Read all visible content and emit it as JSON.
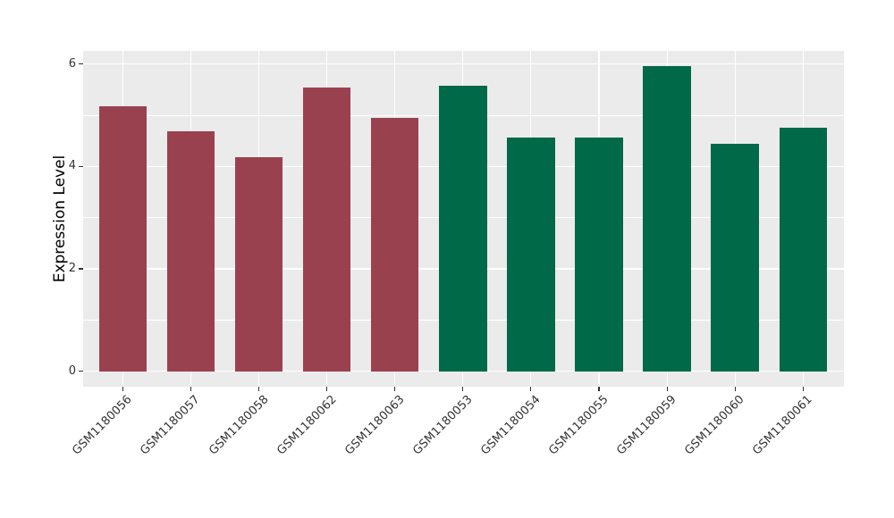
{
  "chart_data": {
    "type": "bar",
    "title": "",
    "xlabel": "",
    "ylabel": "Expression Level",
    "categories": [
      "GSM1180056",
      "GSM1180057",
      "GSM1180058",
      "GSM1180062",
      "GSM1180063",
      "GSM1180053",
      "GSM1180054",
      "GSM1180055",
      "GSM1180059",
      "GSM1180060",
      "GSM1180061"
    ],
    "values": [
      5.18,
      4.69,
      4.18,
      5.55,
      4.94,
      5.57,
      4.56,
      4.57,
      5.96,
      4.44,
      4.76
    ],
    "bar_groups": [
      "group1",
      "group1",
      "group1",
      "group1",
      "group1",
      "group2",
      "group2",
      "group2",
      "group2",
      "group2",
      "group2"
    ],
    "group_colors": {
      "group1": "#9A4150",
      "group2": "#006948"
    },
    "yticks": [
      0,
      2,
      4,
      6
    ],
    "yticks_minor": [
      1,
      3,
      5
    ],
    "ylim": [
      0,
      6.26
    ],
    "legend": "none",
    "grid": "horizontal major+minor, vertical major at category centers",
    "panel_background": "#EBEBEB",
    "grid_color": "#FFFFFF",
    "axis_text_color": "#333333"
  }
}
